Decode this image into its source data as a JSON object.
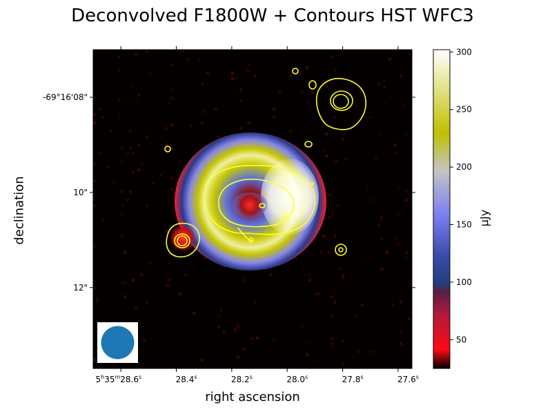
{
  "chart_data": {
    "type": "heatmap",
    "title": "Deconvolved F1800W + Contours HST WFC3",
    "xlabel": "right ascension",
    "ylabel": "declination",
    "x_ticks": [
      {
        "value": 28.6,
        "html": "5<sup>h</sup>35<sup>m</sup>28.6<sup>s</sup>"
      },
      {
        "value": 28.4,
        "html": "28.4<sup>s</sup>"
      },
      {
        "value": 28.2,
        "html": "28.2<sup>s</sup>"
      },
      {
        "value": 28.0,
        "html": "28.0<sup>s</sup>"
      },
      {
        "value": 27.8,
        "html": "27.8<sup>s</sup>"
      },
      {
        "value": 27.6,
        "html": "27.6<sup>s</sup>"
      }
    ],
    "xlim": [
      28.7,
      27.55
    ],
    "y_ticks": [
      {
        "value": 8,
        "label": "-69°16'08\""
      },
      {
        "value": 10,
        "label": "10\""
      },
      {
        "value": 12,
        "label": "12\""
      }
    ],
    "ylim": [
      7.0,
      13.7
    ],
    "colorbar": {
      "label": "μJy",
      "ticks": [
        50,
        100,
        150,
        200,
        250,
        300
      ],
      "range": [
        25,
        302
      ],
      "colormap": [
        "#000000",
        "#ff0a14",
        "#b01a3a",
        "#2a3a8c",
        "#7a7ef2",
        "#c4c4c4",
        "#c0c000",
        "#ffffff"
      ]
    },
    "image_features": [
      {
        "name": "outer ring",
        "center_ra": 28.171,
        "center_dec": 10.33,
        "inner_radius_arcsec": 0.84,
        "outer_radius_arcsec": 1.6,
        "peak_uJy": 300
      },
      {
        "name": "central core",
        "center_ra": 28.17,
        "center_dec": 10.33,
        "peak_uJy": 50
      }
    ],
    "contour_color": "#ffff33",
    "beam_color": "#1f77b4"
  }
}
